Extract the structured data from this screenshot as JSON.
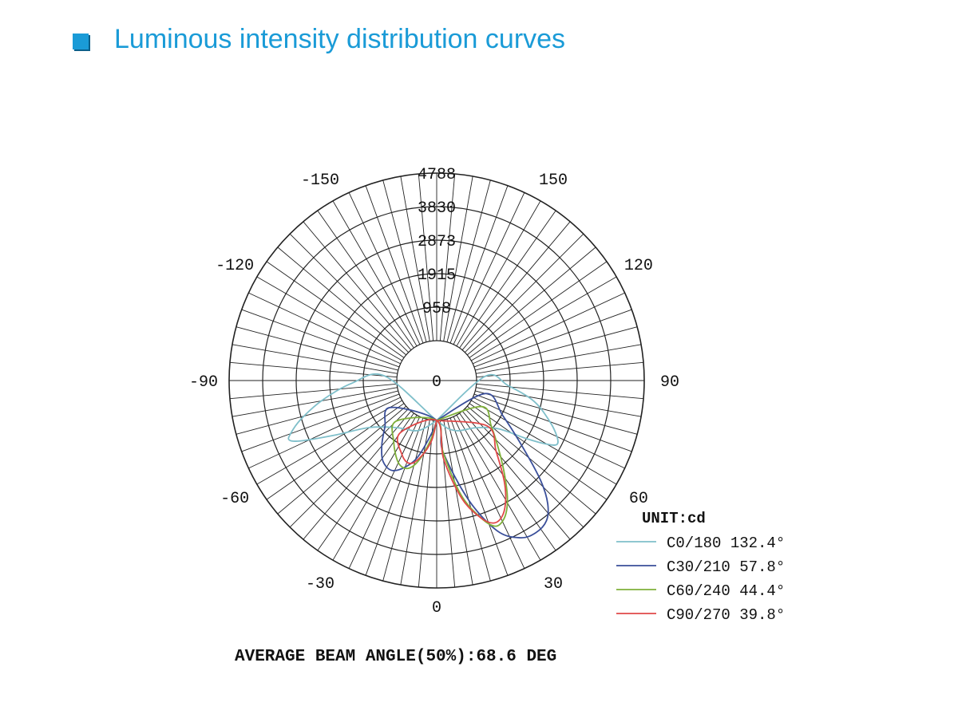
{
  "header": {
    "title": "Luminous intensity distribution curves"
  },
  "footer": {
    "text": "AVERAGE BEAM ANGLE(50%):68.6 DEG"
  },
  "chart_data": {
    "type": "polar",
    "title": "",
    "unit_label": "UNIT:cd",
    "radial_ticks": [
      "0",
      "958",
      "1915",
      "2873",
      "3830",
      "4788"
    ],
    "radial_values": [
      0,
      958,
      1915,
      2873,
      3830,
      4788
    ],
    "radial_max": 4788,
    "angle_labels": [
      {
        "text": "0",
        "angle": 0
      },
      {
        "text": "30",
        "angle": 30
      },
      {
        "text": "60",
        "angle": 60
      },
      {
        "text": "90",
        "angle": 90
      },
      {
        "text": "120",
        "angle": 120
      },
      {
        "text": "150",
        "angle": 150
      },
      {
        "text": "-30",
        "angle": -30
      },
      {
        "text": "-60",
        "angle": -60
      },
      {
        "text": "-90",
        "angle": -90
      },
      {
        "text": "-120",
        "angle": -120
      },
      {
        "text": "-150",
        "angle": -150
      }
    ],
    "grid": true,
    "legend_position": "bottom-right",
    "series": [
      {
        "name": "C0/180",
        "beam_angle": "132.4°",
        "color": "#7fbfca",
        "points": [
          [
            0,
            0
          ],
          [
            -20,
            380
          ],
          [
            -40,
            620
          ],
          [
            -55,
            1200
          ],
          [
            -62,
            2200
          ],
          [
            -66,
            3100
          ],
          [
            -68,
            3400
          ],
          [
            -70,
            3300
          ],
          [
            -74,
            2900
          ],
          [
            -80,
            2200
          ],
          [
            -88,
            1300
          ],
          [
            -95,
            350
          ],
          [
            0,
            0
          ],
          [
            20,
            380
          ],
          [
            40,
            620
          ],
          [
            52,
            1100
          ],
          [
            57,
            1900
          ],
          [
            60,
            2500
          ],
          [
            62,
            2750
          ],
          [
            65,
            2650
          ],
          [
            70,
            2300
          ],
          [
            78,
            1700
          ],
          [
            86,
            900
          ],
          [
            95,
            250
          ],
          [
            0,
            0
          ]
        ]
      },
      {
        "name": "C30/210",
        "beam_angle": "57.8°",
        "color": "#3a4f9a",
        "points": [
          [
            0,
            0
          ],
          [
            -5,
            350
          ],
          [
            -15,
            1200
          ],
          [
            -25,
            1700
          ],
          [
            -33,
            1650
          ],
          [
            -40,
            1300
          ],
          [
            -48,
            850
          ],
          [
            -60,
            400
          ],
          [
            0,
            0
          ],
          [
            5,
            900
          ],
          [
            15,
            2400
          ],
          [
            22,
            3500
          ],
          [
            28,
            3950
          ],
          [
            33,
            4050
          ],
          [
            38,
            3950
          ],
          [
            42,
            3600
          ],
          [
            46,
            3000
          ],
          [
            52,
            2000
          ],
          [
            62,
            1000
          ],
          [
            75,
            300
          ],
          [
            0,
            0
          ]
        ]
      },
      {
        "name": "C60/240",
        "beam_angle": "44.4°",
        "color": "#7fb03a",
        "points": [
          [
            0,
            0
          ],
          [
            -5,
            500
          ],
          [
            -12,
            1150
          ],
          [
            -18,
            1500
          ],
          [
            -25,
            1450
          ],
          [
            -35,
            1000
          ],
          [
            -45,
            500
          ],
          [
            0,
            0
          ],
          [
            5,
            900
          ],
          [
            12,
            2200
          ],
          [
            18,
            3000
          ],
          [
            22,
            3350
          ],
          [
            26,
            3250
          ],
          [
            30,
            2900
          ],
          [
            34,
            2400
          ],
          [
            40,
            1700
          ],
          [
            50,
            900
          ],
          [
            60,
            350
          ],
          [
            0,
            0
          ]
        ]
      },
      {
        "name": "C90/270",
        "beam_angle": "39.8°",
        "color": "#e04848",
        "points": [
          [
            0,
            0
          ],
          [
            -5,
            600
          ],
          [
            -12,
            1100
          ],
          [
            -18,
            1350
          ],
          [
            -25,
            1200
          ],
          [
            -35,
            700
          ],
          [
            0,
            0
          ],
          [
            5,
            1100
          ],
          [
            12,
            2300
          ],
          [
            18,
            3000
          ],
          [
            22,
            3250
          ],
          [
            26,
            3150
          ],
          [
            30,
            2800
          ],
          [
            34,
            2300
          ],
          [
            40,
            1500
          ],
          [
            48,
            800
          ],
          [
            0,
            0
          ]
        ]
      }
    ]
  }
}
